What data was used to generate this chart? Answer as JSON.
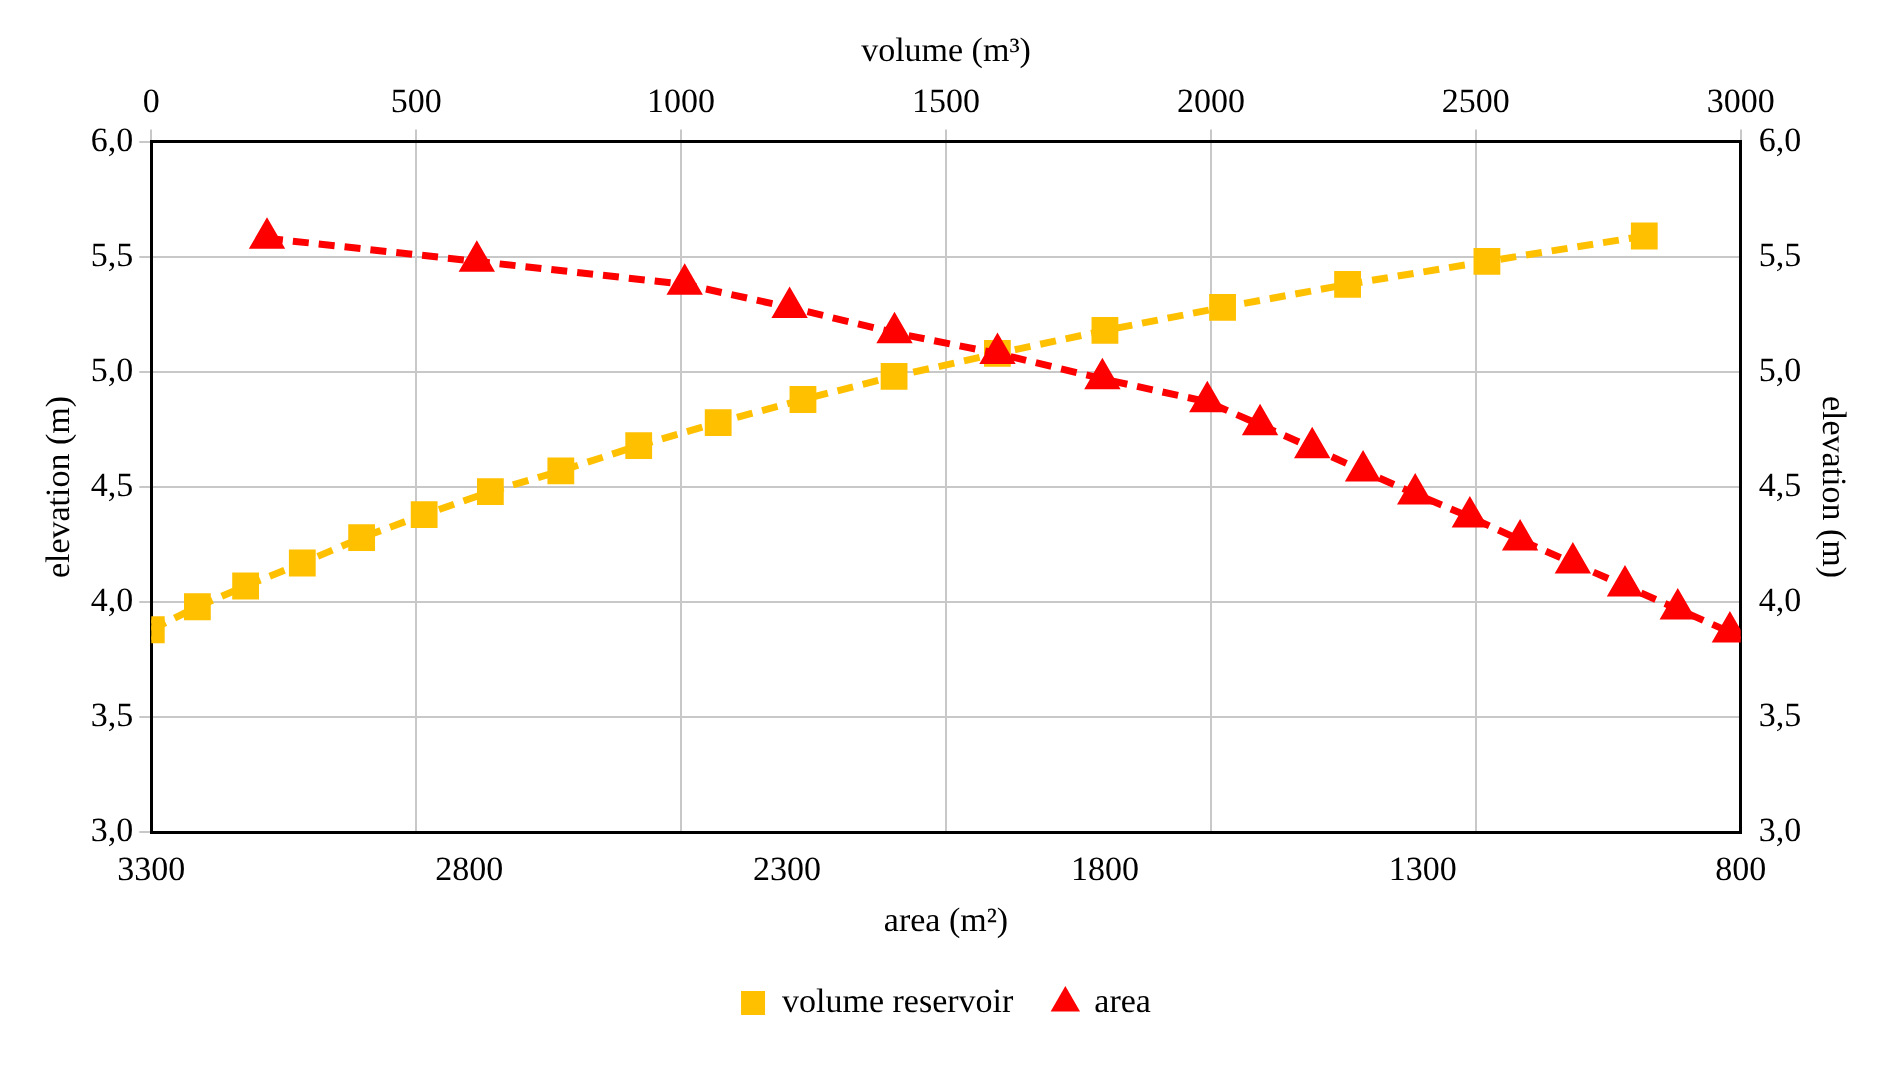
{
  "chart_data": {
    "type": "line",
    "xlabel": "area (m²)",
    "x2label": "volume (m³)",
    "ylabel": "elevation (m)",
    "y2label": "elevation (m)",
    "xlim": [
      3300,
      800
    ],
    "xticks": [
      3300,
      2800,
      2300,
      1800,
      1300,
      800
    ],
    "x2lim": [
      0,
      3000
    ],
    "x2ticks": [
      0,
      500,
      1000,
      1500,
      2000,
      2500,
      3000
    ],
    "ylim": [
      3,
      6
    ],
    "yticks": [
      {
        "value": 3,
        "label": "3,0"
      },
      {
        "value": 3.5,
        "label": "3,5"
      },
      {
        "value": 4,
        "label": "4,0"
      },
      {
        "value": 4.5,
        "label": "4,5"
      },
      {
        "value": 5,
        "label": "5,0"
      },
      {
        "value": 5.5,
        "label": "5,5"
      },
      {
        "value": 6,
        "label": "6,0"
      }
    ],
    "y2lim": [
      3,
      6
    ],
    "y2ticks": [
      {
        "value": 3,
        "label": "3,0"
      },
      {
        "value": 3.5,
        "label": "3,5"
      },
      {
        "value": 4,
        "label": "4,0"
      },
      {
        "value": 4.5,
        "label": "4,5"
      },
      {
        "value": 5,
        "label": "5,0"
      },
      {
        "value": 5.5,
        "label": "5,5"
      },
      {
        "value": 6,
        "label": "6,0"
      }
    ],
    "grid": true,
    "legend": "bottom",
    "line_style": "dashed",
    "series": [
      {
        "name": "volume reservoir",
        "color": "#ffc000",
        "axis": "x2",
        "marker": "square",
        "x": [
          0,
          87,
          178,
          285,
          397,
          515,
          640,
          773,
          920,
          1070,
          1230,
          1402,
          1597,
          1800,
          2022,
          2258,
          2521,
          2818
        ],
        "values": [
          3.88,
          3.98,
          4.07,
          4.17,
          4.28,
          4.38,
          4.48,
          4.57,
          4.68,
          4.78,
          4.88,
          4.98,
          5.08,
          5.18,
          5.28,
          5.38,
          5.48,
          5.59
        ]
      },
      {
        "name": "area",
        "color": "#ff0000",
        "marker": "triangle",
        "x": [
          3118,
          2788,
          2461,
          2296,
          2131,
          1969,
          1804,
          1639,
          1556,
          1474,
          1394,
          1312,
          1226,
          1147,
          1064,
          982,
          899,
          817
        ],
        "values": [
          5.58,
          5.48,
          5.38,
          5.28,
          5.17,
          5.08,
          4.97,
          4.87,
          4.77,
          4.67,
          4.57,
          4.47,
          4.37,
          4.27,
          4.17,
          4.07,
          3.97,
          3.87
        ]
      }
    ]
  }
}
